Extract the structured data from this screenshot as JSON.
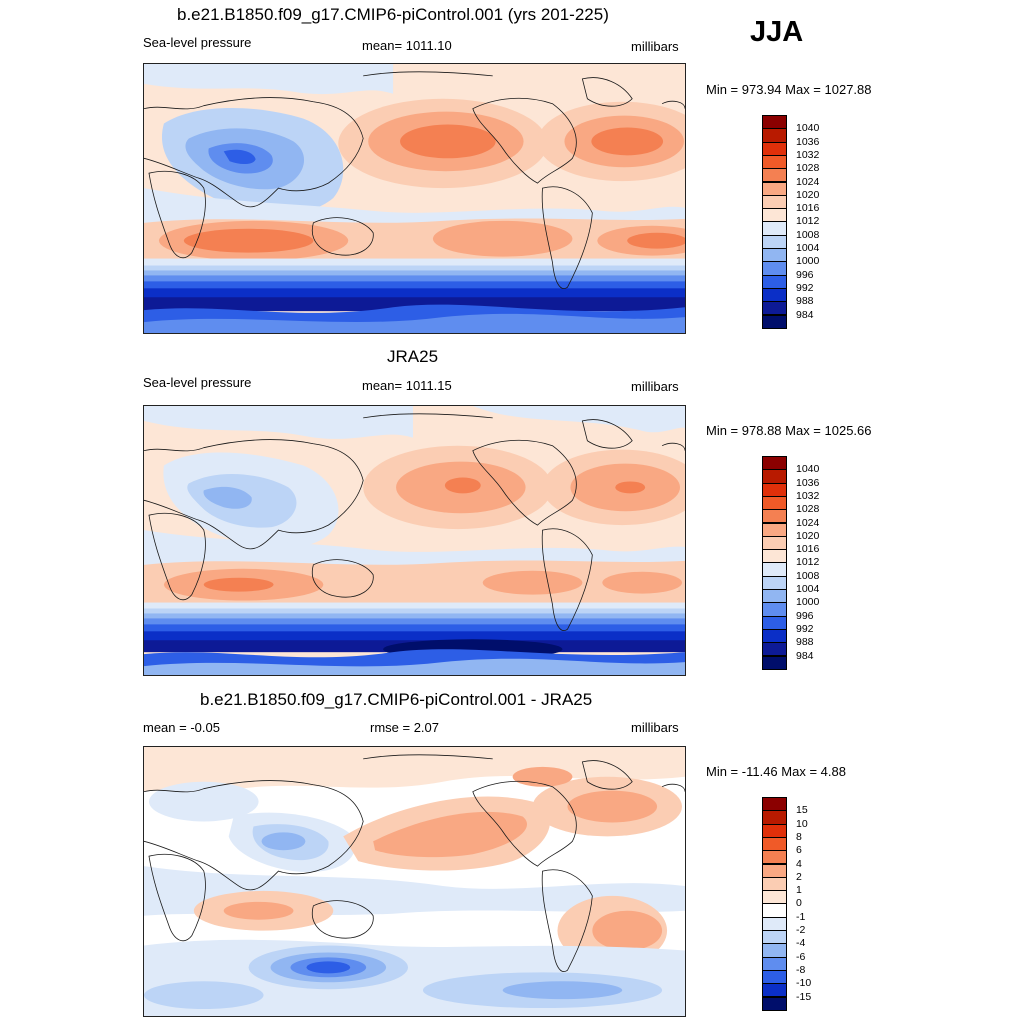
{
  "season": "JJA",
  "panels": [
    {
      "title": "b.e21.B1850.f09_g17.CMIP6-piControl.001 (yrs 201-225)",
      "left_label": "Sea-level pressure",
      "center_label": "mean= 1011.10",
      "right_label": "millibars",
      "minmax": "Min = 973.94 Max = 1027.88"
    },
    {
      "title": "JRA25",
      "left_label": "Sea-level pressure",
      "center_label": "mean= 1011.15",
      "right_label": "millibars",
      "minmax": "Min = 978.88 Max = 1025.66"
    },
    {
      "title": "b.e21.B1850.f09_g17.CMIP6-piControl.001 - JRA25",
      "left_label": "mean =  -0.05",
      "center_label": "rmse =   2.07",
      "right_label": "millibars",
      "minmax": "Min = -11.46 Max =   4.88"
    }
  ],
  "colorbars": {
    "abs": {
      "labels": [
        "1040",
        "1036",
        "1032",
        "1028",
        "1024",
        "1020",
        "1016",
        "1012",
        "1008",
        "1004",
        "1000",
        "996",
        "992",
        "988",
        "984"
      ],
      "colors": [
        "#8b0000",
        "#b81a00",
        "#e0300a",
        "#f05a28",
        "#f48052",
        "#f9a883",
        "#fbcdb3",
        "#fde6d6",
        "#dfeaf9",
        "#bcd4f6",
        "#91b6f2",
        "#5f8def",
        "#2d5ee6",
        "#0b2fc7",
        "#0d1a96",
        "#000e6b"
      ]
    },
    "diff": {
      "labels": [
        "15",
        "10",
        "8",
        "6",
        "4",
        "2",
        "1",
        "0",
        "-1",
        "-2",
        "-4",
        "-6",
        "-8",
        "-10",
        "-15"
      ],
      "colors": [
        "#8b0000",
        "#b81a00",
        "#e0300a",
        "#f05a28",
        "#f48052",
        "#f9a883",
        "#fbcdb3",
        "#fde6d6",
        "#ffffff",
        "#dfeaf9",
        "#bcd4f6",
        "#91b6f2",
        "#5f8def",
        "#2d5ee6",
        "#0b2fc7",
        "#000e6b"
      ]
    }
  }
}
